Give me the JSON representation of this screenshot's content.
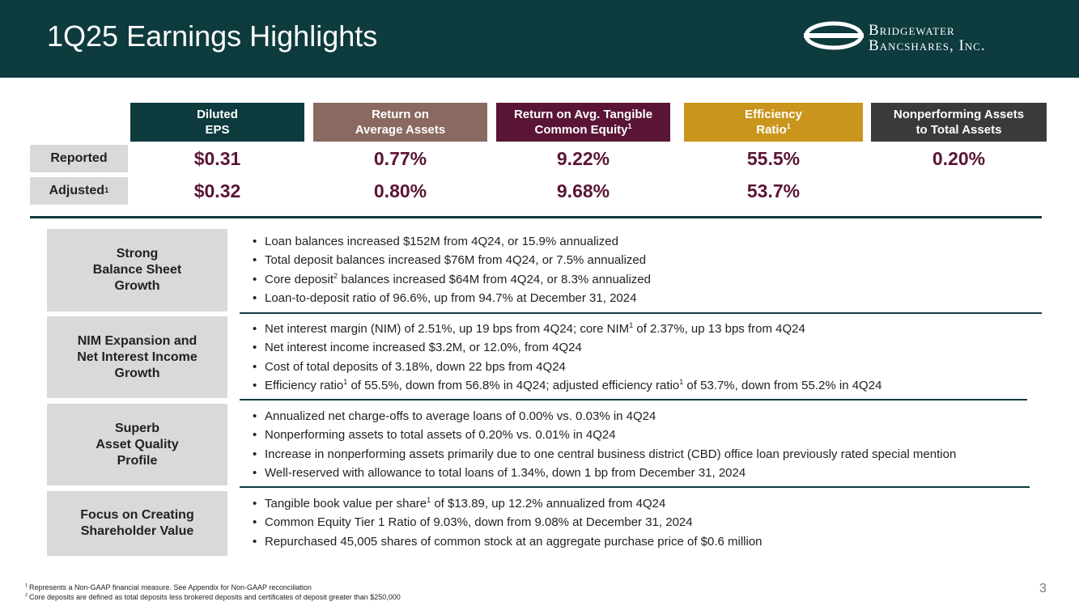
{
  "header": {
    "title": "1Q25 Earnings Highlights",
    "logo_lines": [
      "Bridgewater",
      "Bancshares, Inc."
    ]
  },
  "metrics": {
    "row_labels": [
      [
        "Reported"
      ],
      [
        "Adjusted",
        "1"
      ]
    ],
    "columns": [
      {
        "lines": [
          [
            "Diluted"
          ],
          [
            "EPS"
          ]
        ],
        "color": "#0d3b3e",
        "reported": "$0.31",
        "adjusted": "$0.32"
      },
      {
        "lines": [
          [
            "Return on"
          ],
          [
            "Average Assets"
          ]
        ],
        "color": "#8a6961",
        "reported": "0.77%",
        "adjusted": "0.80%"
      },
      {
        "lines": [
          [
            "Return on Avg. Tangible"
          ],
          [
            "Common Equity",
            "1"
          ]
        ],
        "color": "#5a1536",
        "reported": "9.22%",
        "adjusted": "9.68%"
      },
      {
        "lines": [
          [
            "Efficiency"
          ],
          [
            "Ratio",
            "1"
          ]
        ],
        "color": "#c9951c",
        "reported": "55.5%",
        "adjusted": "53.7%"
      },
      {
        "lines": [
          [
            "Nonperforming Assets"
          ],
          [
            "to Total Assets"
          ]
        ],
        "color": "#3a3a3a",
        "reported": "0.20%"
      }
    ]
  },
  "sections": [
    {
      "label": [
        "Strong",
        "Balance Sheet",
        "Growth"
      ],
      "bullets": [
        [
          "Loan balances increased $152M from 4Q24, or 15.9% annualized"
        ],
        [
          "Total deposit balances increased $76M from 4Q24, or 7.5% annualized"
        ],
        [
          "Core deposit",
          "2",
          " balances increased $64M from 4Q24, or 8.3% annualized"
        ],
        [
          "Loan-to-deposit ratio of 96.6%, up from 94.7% at December 31, 2024"
        ]
      ]
    },
    {
      "label": [
        "NIM Expansion and",
        "Net Interest Income",
        "Growth"
      ],
      "bullets": [
        [
          "Net interest margin (NIM) of 2.51%, up 19 bps from 4Q24; core NIM",
          "1",
          " of 2.37%, up 13 bps from 4Q24"
        ],
        [
          "Net interest income increased $3.2M, or 12.0%, from 4Q24"
        ],
        [
          "Cost of total deposits of 3.18%, down 22 bps from 4Q24"
        ],
        [
          "Efficiency ratio",
          "1",
          " of 55.5%, down from 56.8% in 4Q24; adjusted efficiency ratio",
          "1",
          " of 53.7%, down from 55.2% in 4Q24"
        ]
      ]
    },
    {
      "label": [
        "Superb",
        "Asset Quality",
        "Profile"
      ],
      "bullets": [
        [
          "Annualized net charge-offs to average loans of 0.00% vs. 0.03% in 4Q24"
        ],
        [
          "Nonperforming assets to total assets of 0.20% vs. 0.01% in 4Q24"
        ],
        [
          "Increase in nonperforming assets primarily due to one central business district (CBD) office loan previously rated special mention"
        ],
        [
          "Well-reserved with allowance to total loans of 1.34%, down 1 bp from December 31, 2024"
        ]
      ]
    },
    {
      "label": [
        "Focus on Creating",
        "Shareholder Value"
      ],
      "bullets": [
        [
          "Tangible book value per share",
          "1",
          " of $13.89, up 12.2% annualized from 4Q24"
        ],
        [
          "Common Equity Tier 1 Ratio of 9.03%, down from 9.08% at December 31, 2024"
        ],
        [
          "Repurchased 45,005 shares of common stock at an aggregate purchase price of $0.6 million"
        ]
      ]
    }
  ],
  "footnotes": [
    {
      "mark": "1",
      "text": "Represents a Non-GAAP financial measure. See Appendix for Non-GAAP reconciliation"
    },
    {
      "mark": "2",
      "text": "Core deposits are defined as total deposits less brokered deposits and certificates of deposit greater than $250,000"
    }
  ],
  "page_number": "3"
}
